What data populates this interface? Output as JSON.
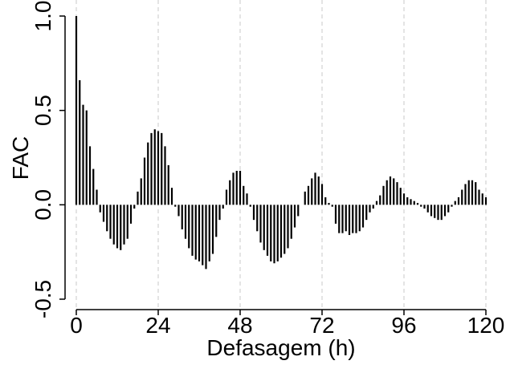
{
  "chart_data": {
    "type": "bar",
    "title": "",
    "xlabel": "Defasagem (h)",
    "ylabel": "FAC",
    "xlim": [
      0,
      120
    ],
    "ylim": [
      -0.5,
      1.0
    ],
    "x_ticks": [
      0,
      24,
      48,
      72,
      96,
      120
    ],
    "x_tick_labels": [
      "0",
      "24",
      "48",
      "72",
      "96",
      "120"
    ],
    "y_ticks": [
      -0.5,
      0.0,
      0.5,
      1.0
    ],
    "y_tick_labels": [
      "-0.5",
      "0.0",
      "0.5",
      "1.0"
    ],
    "grid": "vertical dashed",
    "colors": {
      "bars": "#000000",
      "grid": "#c8c8c8",
      "axis": "#000000"
    },
    "series": [
      {
        "x": [
          0,
          1,
          2,
          3,
          4,
          5,
          6,
          7,
          8,
          9,
          10,
          11,
          12,
          13,
          14,
          15,
          16,
          17,
          18,
          19,
          20,
          21,
          22,
          23,
          24,
          25,
          26,
          27,
          28,
          29,
          30,
          31,
          32,
          33,
          34,
          35,
          36,
          37,
          38,
          39,
          40,
          41,
          42,
          43,
          44,
          45,
          46,
          47,
          48,
          49,
          50,
          51,
          52,
          53,
          54,
          55,
          56,
          57,
          58,
          59,
          60,
          61,
          62,
          63,
          64,
          65,
          66,
          67,
          68,
          69,
          70,
          71,
          72,
          73,
          74,
          75,
          76,
          77,
          78,
          79,
          80,
          81,
          82,
          83,
          84,
          85,
          86,
          87,
          88,
          89,
          90,
          91,
          92,
          93,
          94,
          95,
          96,
          97,
          98,
          99,
          100,
          101,
          102,
          103,
          104,
          105,
          106,
          107,
          108,
          109,
          110,
          111,
          112,
          113,
          114,
          115,
          116,
          117,
          118,
          119,
          120
        ],
        "values": [
          1.0,
          0.66,
          0.53,
          0.5,
          0.31,
          0.19,
          0.08,
          -0.04,
          -0.09,
          -0.14,
          -0.18,
          -0.21,
          -0.23,
          -0.24,
          -0.21,
          -0.18,
          -0.1,
          -0.02,
          0.07,
          0.14,
          0.25,
          0.33,
          0.38,
          0.4,
          0.39,
          0.38,
          0.31,
          0.21,
          0.09,
          -0.01,
          -0.06,
          -0.13,
          -0.18,
          -0.23,
          -0.27,
          -0.29,
          -0.3,
          -0.32,
          -0.34,
          -0.3,
          -0.26,
          -0.17,
          -0.08,
          -0.02,
          0.08,
          0.13,
          0.17,
          0.18,
          0.18,
          0.1,
          0.06,
          -0.01,
          -0.08,
          -0.14,
          -0.2,
          -0.24,
          -0.27,
          -0.3,
          -0.31,
          -0.3,
          -0.28,
          -0.26,
          -0.23,
          -0.18,
          -0.12,
          -0.06,
          0.0,
          0.07,
          0.1,
          0.14,
          0.17,
          0.15,
          0.11,
          0.04,
          0.01,
          -0.01,
          -0.1,
          -0.15,
          -0.15,
          -0.14,
          -0.16,
          -0.15,
          -0.15,
          -0.14,
          -0.12,
          -0.08,
          -0.04,
          -0.02,
          0.02,
          0.05,
          0.1,
          0.13,
          0.15,
          0.14,
          0.12,
          0.09,
          0.06,
          0.04,
          0.03,
          0.02,
          0.01,
          -0.01,
          -0.02,
          -0.04,
          -0.06,
          -0.07,
          -0.08,
          -0.08,
          -0.06,
          -0.04,
          -0.01,
          0.02,
          0.04,
          0.08,
          0.11,
          0.13,
          0.13,
          0.12,
          0.08,
          0.06,
          0.04
        ]
      }
    ]
  }
}
